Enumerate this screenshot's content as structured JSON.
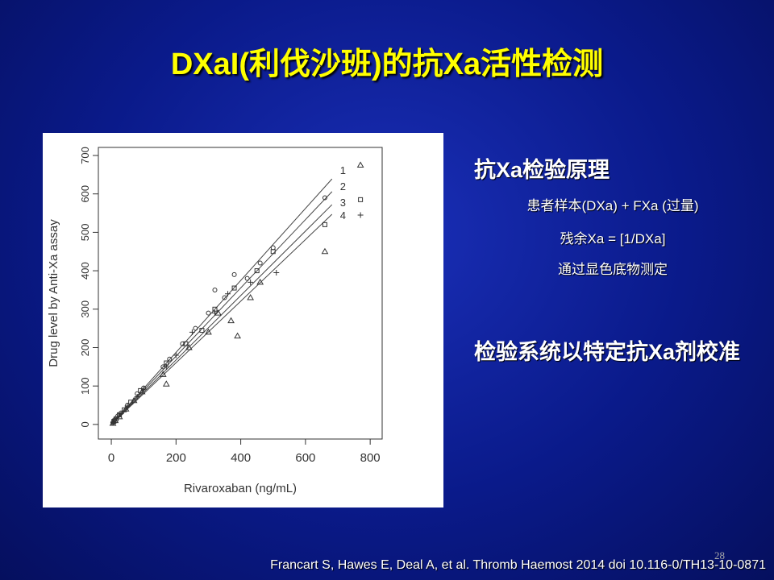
{
  "title": "DXaI(利伐沙班)的抗Xa活性检测",
  "bullets": [
    {
      "text": "抗Xa检验原理",
      "sub": [
        "患者样本(DXa) + FXa (过量)",
        "残余Xa = [1/DXa]",
        "通过显色底物测定"
      ]
    },
    {
      "text": "检验系统以特定抗Xa剂校准"
    }
  ],
  "page_number": "28",
  "citation": "Francart S, Hawes E, Deal A, et al. Thromb Haemost 2014 doi 10.116-0/TH13-10-0871",
  "chart_data": {
    "type": "scatter",
    "x_label": "Rivaroxaban (ng/mL)",
    "y_label": "Drug level by Anti-Xa assay",
    "xlim": [
      -40,
      837
    ],
    "xticks": [
      0,
      200,
      400,
      600,
      800
    ],
    "ylim": [
      -38,
      721
    ],
    "yticks": [
      0,
      100,
      200,
      300,
      400,
      500,
      600,
      700
    ],
    "series": [
      {
        "marker": "circle",
        "x": [
          5,
          10,
          20,
          30,
          50,
          80,
          100,
          160,
          180,
          220,
          260,
          300,
          320,
          350,
          380,
          420,
          460,
          500,
          660
        ],
        "y": [
          5,
          12,
          22,
          30,
          50,
          80,
          95,
          150,
          170,
          210,
          250,
          290,
          350,
          330,
          390,
          380,
          420,
          460,
          590
        ]
      },
      {
        "marker": "square",
        "x": [
          8,
          15,
          25,
          40,
          60,
          90,
          170,
          230,
          280,
          320,
          380,
          450,
          500,
          660,
          770
        ],
        "y": [
          8,
          15,
          25,
          38,
          58,
          88,
          160,
          210,
          245,
          300,
          355,
          400,
          450,
          520,
          585
        ]
      },
      {
        "marker": "triangle",
        "x": [
          5,
          12,
          25,
          45,
          70,
          95,
          160,
          170,
          240,
          300,
          330,
          370,
          390,
          430,
          460,
          660,
          770
        ],
        "y": [
          3,
          10,
          20,
          40,
          62,
          85,
          130,
          105,
          200,
          240,
          290,
          270,
          230,
          330,
          370,
          450,
          675
        ]
      },
      {
        "marker": "plus",
        "x": [
          6,
          15,
          30,
          50,
          80,
          100,
          170,
          200,
          250,
          320,
          360,
          430,
          510,
          770
        ],
        "y": [
          5,
          14,
          28,
          48,
          72,
          92,
          150,
          180,
          240,
          290,
          340,
          370,
          395,
          545
        ]
      }
    ],
    "fits": [
      {
        "name": "1",
        "x": [
          0,
          682
        ],
        "y": [
          0,
          639
        ]
      },
      {
        "name": "2",
        "x": [
          0,
          682
        ],
        "y": [
          0,
          606
        ]
      },
      {
        "name": "3",
        "x": [
          0,
          682
        ],
        "y": [
          0,
          572
        ]
      },
      {
        "name": "4",
        "x": [
          0,
          682
        ],
        "y": [
          0,
          547
        ]
      }
    ]
  }
}
